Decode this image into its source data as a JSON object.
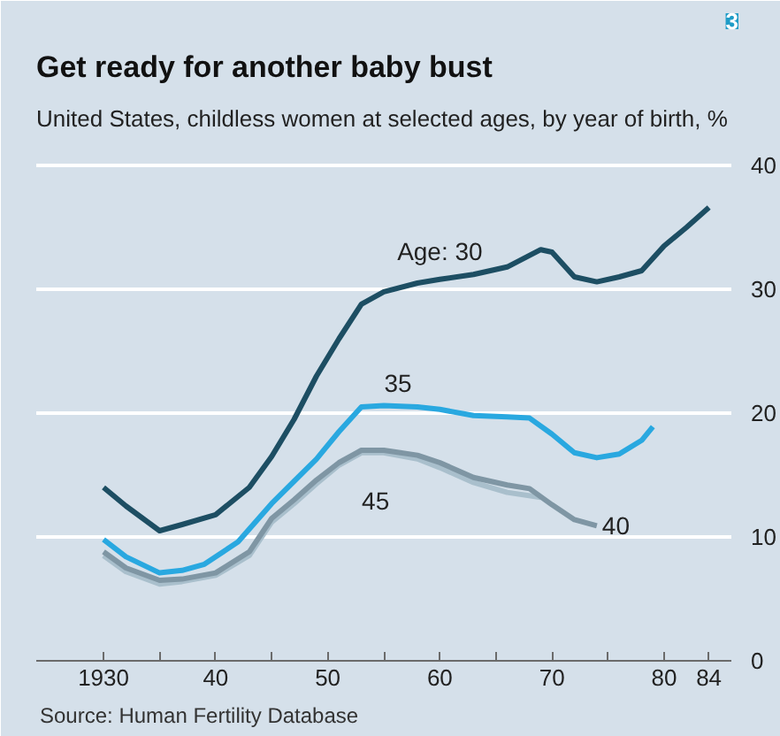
{
  "chart_data": {
    "type": "line",
    "title": "Get ready for another baby bust",
    "subtitle": "United States, childless women at selected ages, by year of birth, %",
    "annotations": [
      "3",
      "Source: Human Fertility Database"
    ],
    "xlim": [
      1924,
      1986
    ],
    "ylim": [
      0,
      42
    ],
    "xticks": [
      1930,
      {
        "value": 1935,
        "label": null
      },
      {
        "value": 1940,
        "label": "40"
      },
      {
        "value": 1945,
        "label": null
      },
      {
        "value": 1950,
        "label": "50"
      },
      {
        "value": 1955,
        "label": null
      },
      {
        "value": 1960,
        "label": "60"
      },
      {
        "value": 1965,
        "label": null
      },
      {
        "value": 1970,
        "label": "70"
      },
      {
        "value": 1975,
        "label": null
      },
      {
        "value": 1980,
        "label": "80"
      },
      {
        "value": 1984,
        "label": "84"
      }
    ],
    "yticks": [
      0,
      10,
      20,
      30,
      40
    ],
    "grid": "y",
    "marker": "none",
    "line_style": "solid",
    "series": [
      {
        "name": "Age: 30",
        "color": "#1d4e63",
        "x": [
          1930,
          1932,
          1935,
          1937,
          1940,
          1943,
          1945,
          1947,
          1949,
          1951,
          1953,
          1955,
          1958,
          1960,
          1963,
          1966,
          1969,
          1970,
          1972,
          1974,
          1976,
          1978,
          1980,
          1982,
          1984
        ],
        "values": [
          14,
          12.5,
          10.5,
          11,
          11.8,
          14,
          16.5,
          19.5,
          23,
          26,
          28.8,
          29.8,
          30.5,
          30.8,
          31.2,
          31.8,
          33.2,
          33,
          31,
          30.6,
          31,
          31.5,
          33.5,
          35,
          36.6
        ]
      },
      {
        "name": "35",
        "color": "#29a8e0",
        "x": [
          1930,
          1932,
          1935,
          1937,
          1939,
          1942,
          1945,
          1947,
          1949,
          1951,
          1953,
          1955,
          1958,
          1960,
          1963,
          1966,
          1968,
          1970,
          1972,
          1974,
          1976,
          1978,
          1979
        ],
        "values": [
          9.8,
          8.4,
          7.1,
          7.3,
          7.8,
          9.6,
          12.7,
          14.5,
          16.3,
          18.5,
          20.5,
          20.6,
          20.5,
          20.3,
          19.8,
          19.7,
          19.6,
          18.3,
          16.8,
          16.4,
          16.7,
          17.8,
          18.9
        ]
      },
      {
        "name": "40",
        "color": "#7f96a4",
        "x": [
          1930,
          1932,
          1935,
          1937,
          1940,
          1943,
          1945,
          1947,
          1949,
          1951,
          1953,
          1955,
          1958,
          1960,
          1963,
          1966,
          1968,
          1970,
          1972,
          1974
        ],
        "values": [
          8.8,
          7.5,
          6.5,
          6.6,
          7.1,
          8.8,
          11.5,
          13,
          14.6,
          16,
          17,
          17,
          16.6,
          16,
          14.8,
          14.2,
          13.9,
          12.6,
          11.4,
          10.9
        ]
      },
      {
        "name": "45",
        "color": "#a9bfcc",
        "x": [
          1930,
          1932,
          1935,
          1937,
          1940,
          1943,
          1945,
          1947,
          1949,
          1951,
          1953,
          1955,
          1958,
          1960,
          1963,
          1966,
          1969
        ],
        "values": [
          8.5,
          7.2,
          6.2,
          6.4,
          6.9,
          8.5,
          11.2,
          12.7,
          14.3,
          15.8,
          16.8,
          16.8,
          16.3,
          15.6,
          14.4,
          13.6,
          13.2
        ]
      }
    ]
  }
}
